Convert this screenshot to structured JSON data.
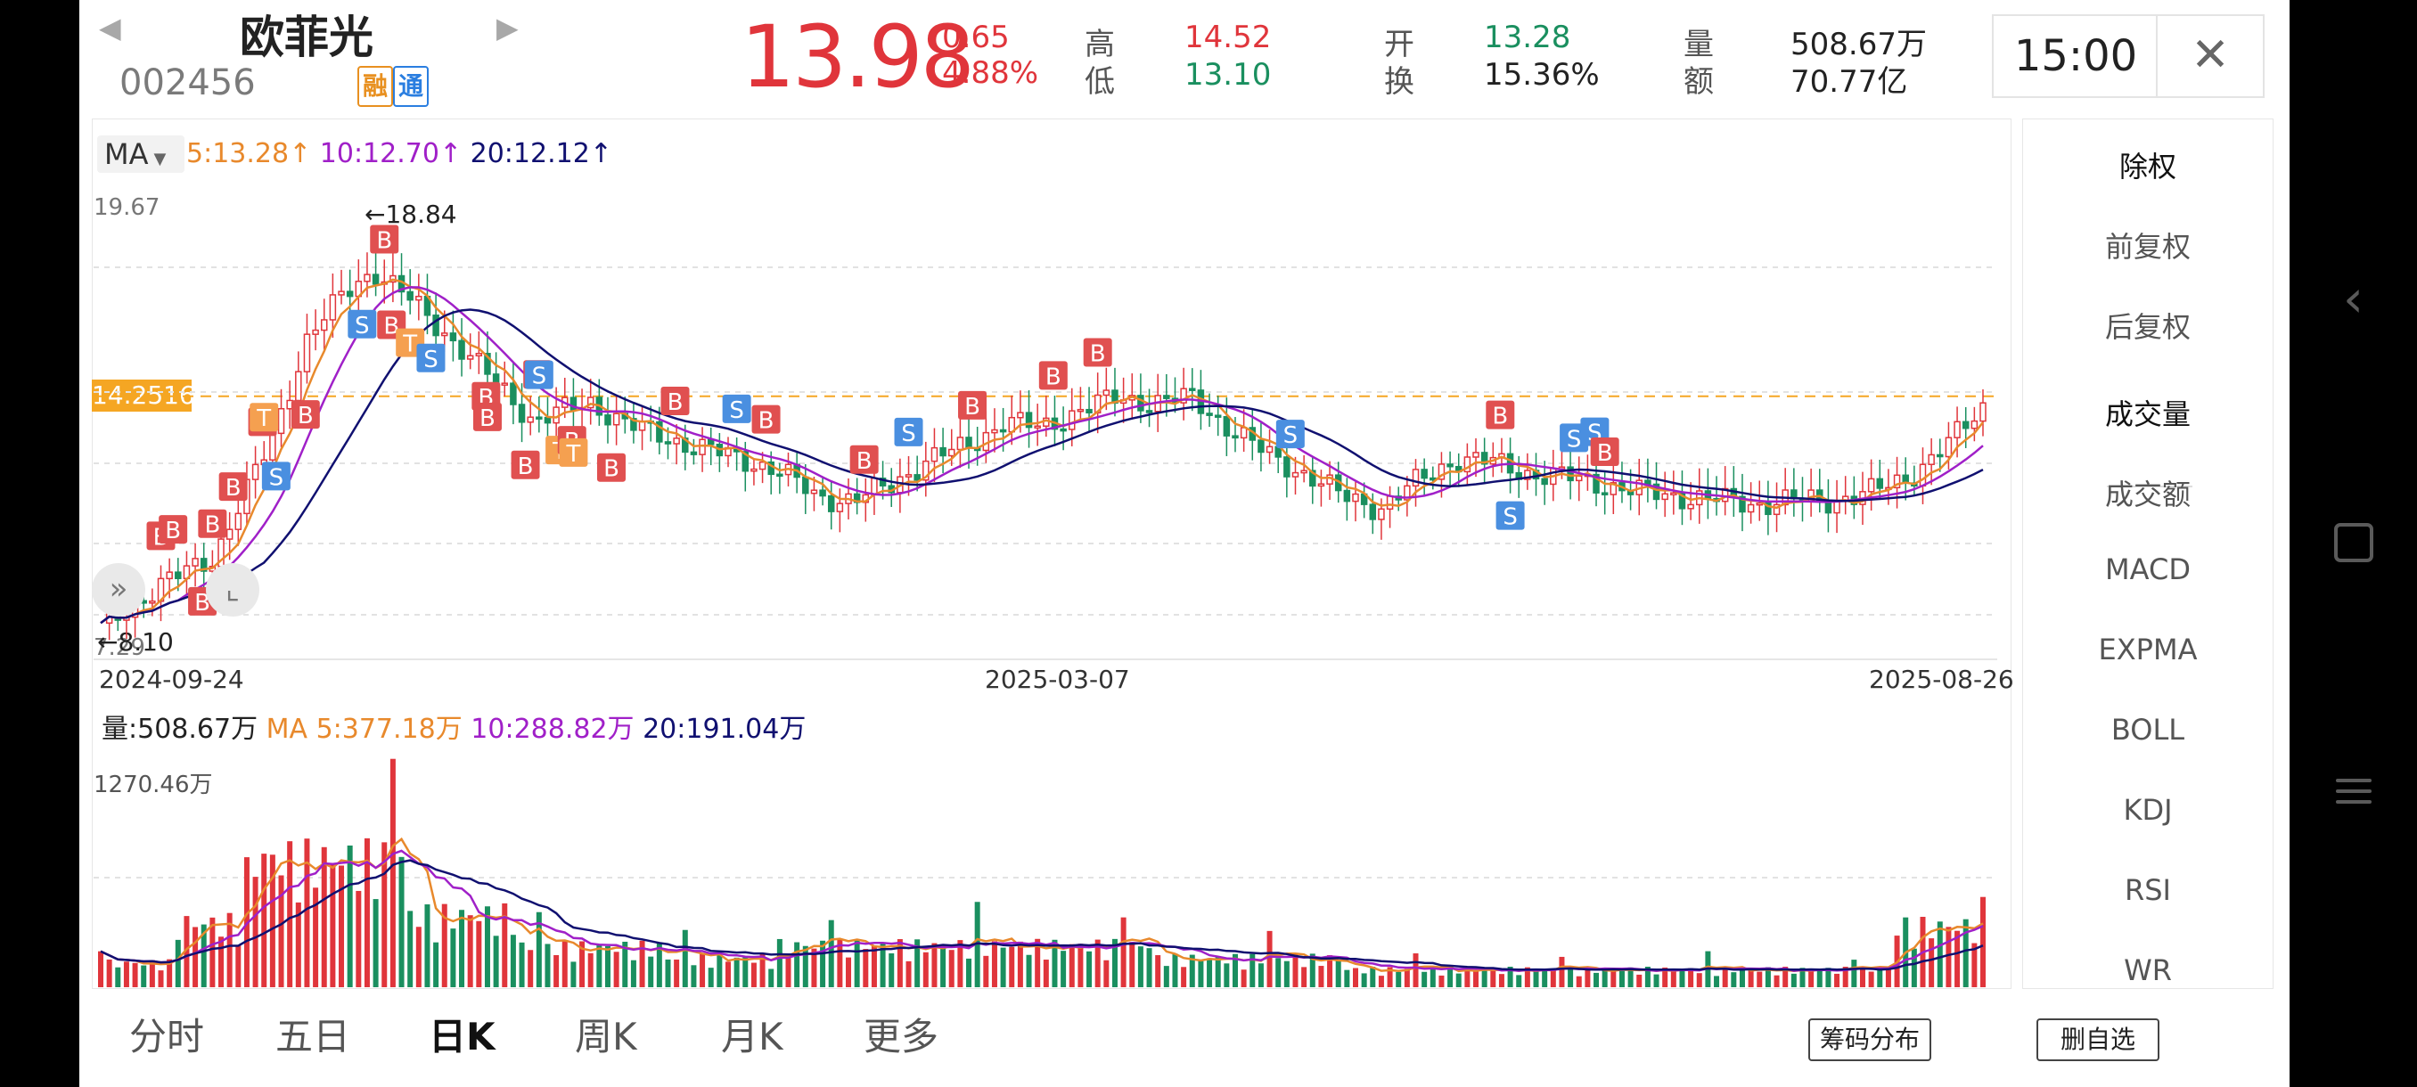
{
  "header": {
    "prev_arrow": "◀",
    "next_arrow": "▶",
    "stock_name": "欧菲光",
    "stock_code": "002456",
    "badge_rong": "融",
    "badge_tong": "通",
    "price": "13.98",
    "change": "0.65",
    "change_pct": "4.88%",
    "high_label": "高",
    "high": "14.52",
    "low_label": "低",
    "low": "13.10",
    "open_label": "开",
    "open": "13.28",
    "turnover_label": "换",
    "turnover": "15.36%",
    "volume_label": "量",
    "volume": "508.67万",
    "amount_label": "额",
    "amount": "70.77亿",
    "time": "15:00",
    "close_icon": "✕"
  },
  "ma": {
    "selector": "MA",
    "ma5": "5:13.28",
    "ma10": "10:12.70",
    "ma20": "20:12.12",
    "arrow": "↑"
  },
  "price_chart": {
    "top_value": "19.67",
    "bottom_value": "7.29",
    "max_marker": "←18.84",
    "min_marker": "←8.10",
    "current_line": "14.2516",
    "dates": [
      "2024-09-24",
      "2025-03-07",
      "2025-08-26"
    ]
  },
  "volume_chart": {
    "vol": "量:508.67万",
    "ma5": "MA 5:377.18万",
    "ma10": "10:288.82万",
    "ma20": "20:191.04万",
    "top_value": "1270.46万"
  },
  "side_menu": {
    "items": [
      "除权",
      "前复权",
      "后复权",
      "成交量",
      "成交额",
      "MACD",
      "EXPMA",
      "BOLL",
      "KDJ",
      "RSI",
      "WR"
    ]
  },
  "tabs": [
    "分时",
    "五日",
    "日K",
    "周K",
    "月K",
    "更多"
  ],
  "buttons": {
    "chips": "筹码分布",
    "remove": "删自选"
  },
  "colors": {
    "up": "#e0353b",
    "down": "#1a8f5f",
    "ma5": "#e8892c",
    "ma10": "#a020c8",
    "ma20": "#101070",
    "buy_tag": "#e05050",
    "sell_tag": "#4a8fe0",
    "t_tag": "#f5a050"
  },
  "chart_data": {
    "type": "candlestick",
    "ylim": [
      7.29,
      19.67
    ],
    "x": [
      "2024-09-24",
      "2025-03-07",
      "2025-08-26"
    ],
    "last_close": 13.98,
    "high_marker": 18.84,
    "low_marker": 8.1,
    "reference_line": 14.2516,
    "series": [
      {
        "name": "MA5",
        "last": 13.28
      },
      {
        "name": "MA10",
        "last": 12.7
      },
      {
        "name": "MA20",
        "last": 12.12
      }
    ],
    "volume": {
      "ylim_max_wan": 1270.46,
      "last_wan": 508.67,
      "ma5_wan": 377.18,
      "ma10_wan": 288.82,
      "ma20_wan": 191.04
    },
    "trade_tags": {
      "B": 27,
      "S": 11,
      "T": 5
    }
  }
}
